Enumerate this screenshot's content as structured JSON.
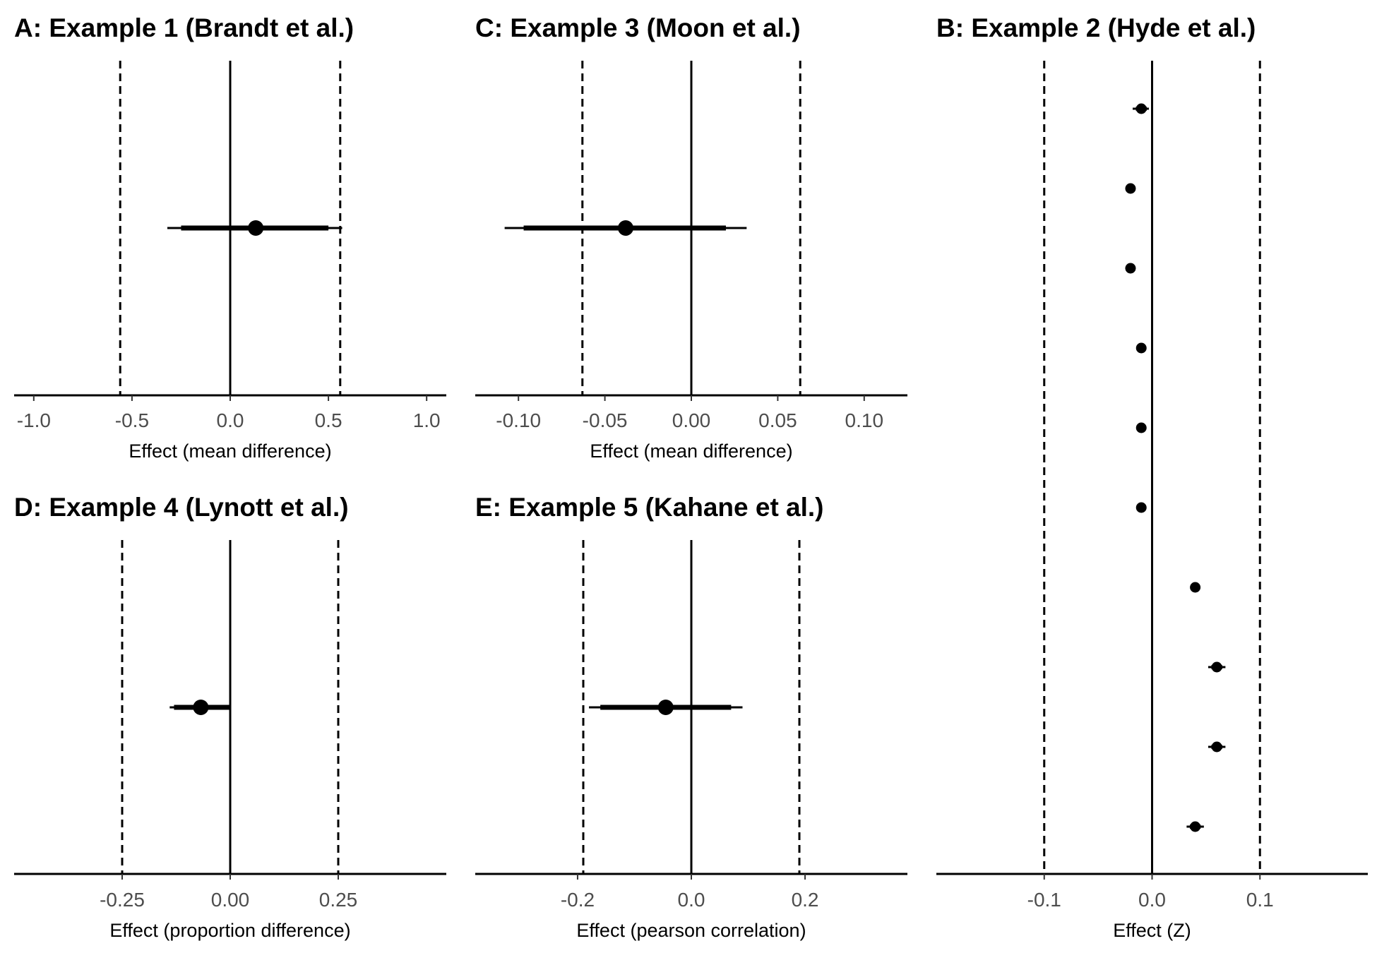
{
  "chart_data": [
    {
      "panel": "A",
      "type": "forest",
      "title": "A: Example 1 (Brandt et al.)",
      "xlabel": "Effect (mean difference)",
      "xlim": [
        -1.1,
        1.1
      ],
      "ticks": [
        -1.0,
        -0.5,
        0.0,
        0.5,
        1.0
      ],
      "tick_labels": [
        "-1.0",
        "-0.5",
        "0.0",
        "0.5",
        "1.0"
      ],
      "equivalence_bounds": [
        -0.56,
        0.56
      ],
      "reference_line": 0,
      "estimates": [
        {
          "estimate": 0.13,
          "ci_inner": [
            -0.25,
            0.5
          ],
          "ci_outer": [
            -0.32,
            0.57
          ]
        }
      ]
    },
    {
      "panel": "C",
      "type": "forest",
      "title": "C: Example 3 (Moon et al.)",
      "xlabel": "Effect (mean difference)",
      "xlim": [
        -0.125,
        0.125
      ],
      "ticks": [
        -0.1,
        -0.05,
        0.0,
        0.05,
        0.1
      ],
      "tick_labels": [
        "-0.10",
        "-0.05",
        "0.00",
        "0.05",
        "0.10"
      ],
      "equivalence_bounds": [
        -0.063,
        0.063
      ],
      "reference_line": 0,
      "estimates": [
        {
          "estimate": -0.038,
          "ci_inner": [
            -0.097,
            0.02
          ],
          "ci_outer": [
            -0.108,
            0.032
          ]
        }
      ]
    },
    {
      "panel": "D",
      "type": "forest",
      "title": "D: Example 4 (Lynott et al.)",
      "xlabel": "Effect (proportion difference)",
      "xlim": [
        -0.5,
        0.5
      ],
      "ticks": [
        -0.25,
        0.0,
        0.25
      ],
      "tick_labels": [
        "-0.25",
        "0.00",
        "0.25"
      ],
      "equivalence_bounds": [
        -0.25,
        0.25
      ],
      "reference_line": 0,
      "estimates": [
        {
          "estimate": -0.068,
          "ci_inner": [
            -0.13,
            0.0
          ],
          "ci_outer": [
            -0.14,
            0.0
          ]
        }
      ]
    },
    {
      "panel": "E",
      "type": "forest",
      "title": "E: Example 5 (Kahane et al.)",
      "xlabel": "Effect (pearson correlation)",
      "xlim": [
        -0.38,
        0.38
      ],
      "ticks": [
        -0.2,
        0.0,
        0.2
      ],
      "tick_labels": [
        "-0.2",
        "0.0",
        "0.2"
      ],
      "equivalence_bounds": [
        -0.19,
        0.19
      ],
      "reference_line": 0,
      "estimates": [
        {
          "estimate": -0.045,
          "ci_inner": [
            -0.16,
            0.07
          ],
          "ci_outer": [
            -0.18,
            0.09
          ]
        }
      ]
    },
    {
      "panel": "B",
      "type": "forest",
      "title": "B: Example 2 (Hyde et al.)",
      "xlabel": "Effect (Z)",
      "xlim": [
        -0.2,
        0.2
      ],
      "ticks": [
        -0.1,
        0.0,
        0.1
      ],
      "tick_labels": [
        "-0.1",
        "0.0",
        "0.1"
      ],
      "equivalence_bounds": [
        -0.1,
        0.1
      ],
      "reference_line": 0,
      "estimates": [
        {
          "estimate": -0.01,
          "ci_inner": [
            -0.015,
            -0.005
          ],
          "ci_outer": [
            -0.018,
            -0.003
          ]
        },
        {
          "estimate": -0.02,
          "ci_inner": [
            -0.022,
            -0.018
          ],
          "ci_outer": [
            -0.023,
            -0.017
          ]
        },
        {
          "estimate": -0.02,
          "ci_inner": [
            -0.022,
            -0.018
          ],
          "ci_outer": [
            -0.023,
            -0.017
          ]
        },
        {
          "estimate": -0.01,
          "ci_inner": [
            -0.012,
            -0.008
          ],
          "ci_outer": [
            -0.013,
            -0.007
          ]
        },
        {
          "estimate": -0.01,
          "ci_inner": [
            -0.012,
            -0.008
          ],
          "ci_outer": [
            -0.013,
            -0.007
          ]
        },
        {
          "estimate": -0.01,
          "ci_inner": [
            -0.012,
            -0.008
          ],
          "ci_outer": [
            -0.013,
            -0.007
          ]
        },
        {
          "estimate": 0.04,
          "ci_inner": [
            0.038,
            0.042
          ],
          "ci_outer": [
            0.037,
            0.043
          ]
        },
        {
          "estimate": 0.06,
          "ci_inner": [
            0.055,
            0.065
          ],
          "ci_outer": [
            0.052,
            0.068
          ]
        },
        {
          "estimate": 0.06,
          "ci_inner": [
            0.055,
            0.065
          ],
          "ci_outer": [
            0.052,
            0.068
          ]
        },
        {
          "estimate": 0.04,
          "ci_inner": [
            0.035,
            0.045
          ],
          "ci_outer": [
            0.032,
            0.048
          ]
        }
      ]
    }
  ]
}
